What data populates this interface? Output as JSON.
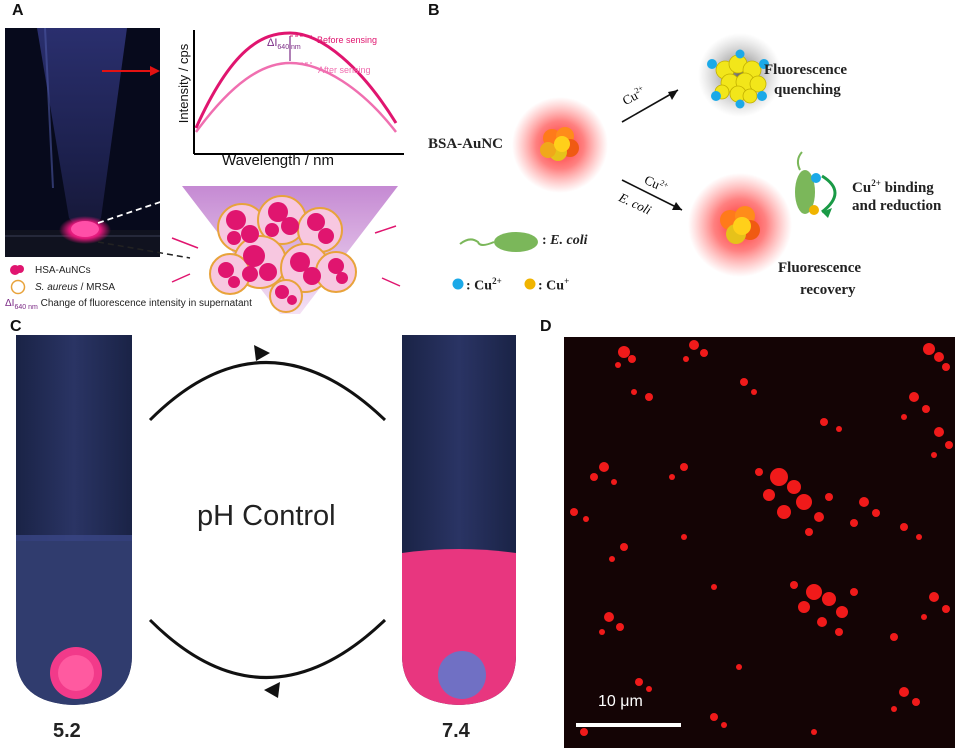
{
  "panels": {
    "a": {
      "label": "A",
      "ylabel": "Intensity / cps",
      "xlabel": "Wavelength / nm",
      "curve_before": "Before sensing",
      "curve_after": "After sensing",
      "delta_symbol": "ΔI",
      "delta_sub": "640 nm",
      "legend": {
        "item1": "HSA-AuNCs",
        "item2_italic": "S. aureus",
        "item2_rest": " / MRSA",
        "item3_delta": "ΔI",
        "item3_sub": "640 nm",
        "item3_rest": "Change of fluorescence intensity in supernatant"
      }
    },
    "b": {
      "label": "B",
      "bsa": "BSA-AuNC",
      "cu_top": "Cu",
      "cu_top_sup": "2+",
      "cu_mid": "Cu",
      "cu_mid_sup": "2+",
      "ecoli_arrow": "E. coli",
      "quench1": "Fluorescence",
      "quench2": "quenching",
      "binding1_cu": "Cu",
      "binding1_sup": "2+",
      "binding1_rest": " binding",
      "binding2": "and reduction",
      "ecoli_legend_prefix": ": ",
      "ecoli_legend": "E. coli",
      "cu2_legend": ": Cu",
      "cu2_legend_sup": "2+",
      "cu1_legend": ": Cu",
      "cu1_legend_sup": "+",
      "recovery1": "Fluorescence",
      "recovery2": "recovery"
    },
    "c": {
      "label": "C",
      "center": "pH Control",
      "left_ph": "5.2",
      "right_ph": "7.4"
    },
    "d": {
      "label": "D",
      "scale": "10 μm"
    }
  },
  "colors": {
    "magenta": "#e0156f",
    "pink_light": "#f06fb0",
    "tube_blue": "#22305a",
    "cu2": "#1ba9e8",
    "cu1": "#f0b400",
    "bacteria": "#7bb75a"
  }
}
